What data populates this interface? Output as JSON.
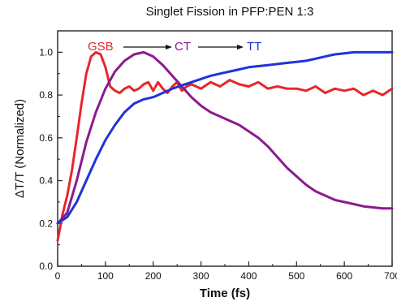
{
  "chart_data": {
    "type": "line",
    "title": "Singlet Fission in PFP:PEN 1:3",
    "xlabel": "Time (fs)",
    "ylabel": "ΔT/T (Normalized)",
    "xlim": [
      0,
      700
    ],
    "ylim": [
      0.0,
      1.1
    ],
    "xticks": [
      "0",
      "100",
      "200",
      "300",
      "400",
      "500",
      "600",
      "700"
    ],
    "yticks": [
      "0.0",
      "0.2",
      "0.4",
      "0.6",
      "0.8",
      "1.0"
    ],
    "grid": false,
    "annotations": [
      {
        "text": "GSB",
        "color": "#e8262a"
      },
      {
        "text": "CT",
        "color": "#8b1a8e"
      },
      {
        "text": "TT",
        "color": "#1f33d8"
      }
    ],
    "series": [
      {
        "color": "#e8262a",
        "x": [
          0,
          10,
          20,
          30,
          40,
          50,
          60,
          70,
          80,
          90,
          100,
          110,
          120,
          130,
          140,
          150,
          160,
          170,
          180,
          190,
          200,
          210,
          220,
          230,
          240,
          250,
          260,
          270,
          280,
          290,
          300,
          320,
          340,
          360,
          380,
          400,
          420,
          440,
          460,
          480,
          500,
          520,
          540,
          560,
          580,
          600,
          620,
          640,
          660,
          680,
          700
        ],
        "y": [
          0.12,
          0.24,
          0.33,
          0.45,
          0.6,
          0.76,
          0.9,
          0.98,
          1.0,
          0.99,
          0.93,
          0.84,
          0.82,
          0.81,
          0.83,
          0.84,
          0.82,
          0.83,
          0.85,
          0.86,
          0.82,
          0.86,
          0.83,
          0.81,
          0.84,
          0.86,
          0.82,
          0.84,
          0.85,
          0.84,
          0.83,
          0.86,
          0.84,
          0.87,
          0.85,
          0.84,
          0.86,
          0.83,
          0.84,
          0.83,
          0.83,
          0.82,
          0.84,
          0.81,
          0.83,
          0.82,
          0.83,
          0.8,
          0.82,
          0.8,
          0.83
        ]
      },
      {
        "color": "#8b1a8e",
        "x": [
          0,
          20,
          40,
          60,
          80,
          100,
          120,
          140,
          160,
          180,
          200,
          220,
          240,
          260,
          280,
          300,
          320,
          340,
          360,
          380,
          400,
          420,
          440,
          460,
          480,
          500,
          520,
          540,
          560,
          580,
          600,
          620,
          640,
          660,
          680,
          700
        ],
        "y": [
          0.2,
          0.25,
          0.4,
          0.58,
          0.72,
          0.83,
          0.91,
          0.96,
          0.99,
          1.0,
          0.98,
          0.94,
          0.89,
          0.84,
          0.79,
          0.75,
          0.72,
          0.7,
          0.68,
          0.66,
          0.63,
          0.6,
          0.56,
          0.51,
          0.46,
          0.42,
          0.38,
          0.35,
          0.33,
          0.31,
          0.3,
          0.29,
          0.28,
          0.275,
          0.27,
          0.27
        ]
      },
      {
        "color": "#1f33d8",
        "x": [
          0,
          20,
          40,
          60,
          80,
          100,
          120,
          140,
          160,
          180,
          200,
          220,
          240,
          260,
          280,
          300,
          320,
          340,
          360,
          380,
          400,
          420,
          440,
          460,
          480,
          500,
          520,
          540,
          560,
          580,
          600,
          620,
          640,
          660,
          680,
          700
        ],
        "y": [
          0.2,
          0.23,
          0.3,
          0.4,
          0.5,
          0.59,
          0.66,
          0.72,
          0.76,
          0.78,
          0.79,
          0.81,
          0.83,
          0.845,
          0.86,
          0.875,
          0.89,
          0.9,
          0.91,
          0.92,
          0.93,
          0.935,
          0.94,
          0.945,
          0.95,
          0.955,
          0.96,
          0.97,
          0.98,
          0.99,
          0.995,
          1.0,
          1.0,
          1.0,
          1.0,
          1.0
        ]
      }
    ]
  }
}
